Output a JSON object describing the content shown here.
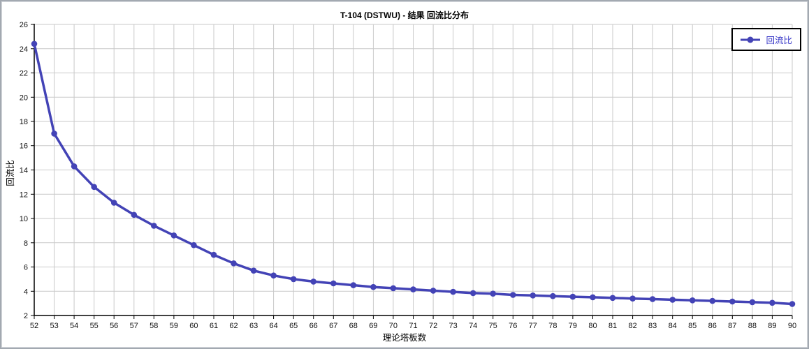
{
  "window": {
    "title": "T-104 (DSTWU) - 结果 回流比分布"
  },
  "chart_data": {
    "type": "line",
    "title": "T-104 (DSTWU) - 结果 回流比分布",
    "xlabel": "理论塔板数",
    "ylabel": "回流比",
    "x": [
      52,
      53,
      54,
      55,
      56,
      57,
      58,
      59,
      60,
      61,
      62,
      63,
      64,
      65,
      66,
      67,
      68,
      69,
      70,
      71,
      72,
      73,
      74,
      75,
      76,
      77,
      78,
      79,
      80,
      81,
      82,
      83,
      84,
      85,
      86,
      87,
      88,
      89,
      90
    ],
    "series": [
      {
        "name": "回流比",
        "color": "#4343b6",
        "values": [
          24.4,
          17.0,
          14.3,
          12.6,
          11.3,
          10.3,
          9.4,
          8.6,
          7.8,
          7.0,
          6.3,
          5.7,
          5.3,
          5.0,
          4.8,
          4.65,
          4.5,
          4.35,
          4.25,
          4.15,
          4.05,
          3.95,
          3.85,
          3.8,
          3.7,
          3.65,
          3.6,
          3.55,
          3.5,
          3.45,
          3.4,
          3.35,
          3.3,
          3.25,
          3.2,
          3.15,
          3.1,
          3.05,
          2.95
        ]
      }
    ],
    "xlim": [
      52,
      90
    ],
    "ylim": [
      2,
      26
    ],
    "x_tick_step": 1,
    "y_tick_step": 2,
    "grid": true,
    "legend": {
      "position": "top-right",
      "entries": [
        "回流比"
      ]
    },
    "colors": {
      "line": "#4343b6",
      "grid": "#c9c9c9",
      "axis": "#000000",
      "legend_text": "#3a3ac8",
      "legend_border": "#000000",
      "background": "#ffffff",
      "frame": "#a3a9b1"
    }
  }
}
